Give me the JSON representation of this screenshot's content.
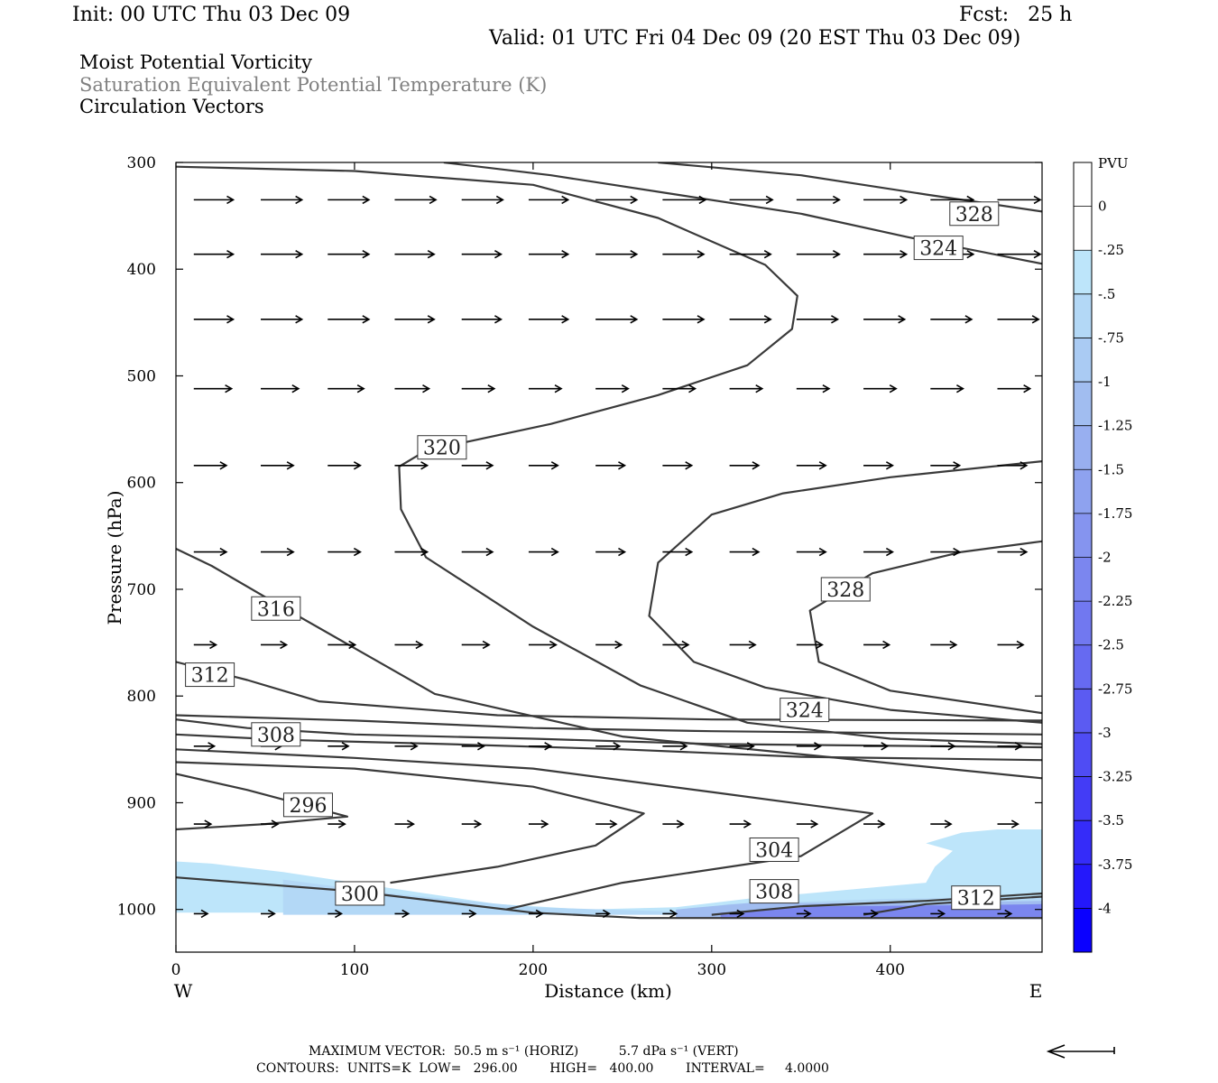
{
  "header": {
    "init": "Init: 00 UTC Thu 03 Dec 09",
    "fcst": "Fcst:   25 h",
    "valid": "Valid: 01 UTC Fri 04 Dec 09 (20 EST Thu 03 Dec 09)"
  },
  "fields": {
    "line1": "Moist Potential Vorticity",
    "line2": "Saturation Equivalent Potential Temperature (K)",
    "line3": "Circulation Vectors"
  },
  "footer": {
    "max_vector": "MAXIMUM VECTOR:  50.5 m s⁻¹ (HORIZ)          5.7 dPa s⁻¹ (VERT)",
    "contours": "CONTOURS:  UNITS=K  LOW=   296.00        HIGH=   400.00        INTERVAL=     4.0000"
  },
  "colors": {
    "contour": "#3a3a3a",
    "arrow": "#000000"
  },
  "chart_data": {
    "type": "cross-section",
    "xlabel": "Distance (km)",
    "ylabel": "Pressure (hPa)",
    "x_range": [
      0,
      485
    ],
    "y_range": [
      1040,
      300
    ],
    "y_scale": "linear-pressure",
    "x_ticks": [
      0,
      100,
      200,
      300,
      400
    ],
    "y_ticks": [
      300,
      400,
      500,
      600,
      700,
      800,
      900,
      1000
    ],
    "x_end_labels": {
      "left": "W",
      "right": "E"
    },
    "colorbar": {
      "units": "PVU",
      "labels": [
        "0",
        "-.25",
        "-.5",
        "-.75",
        "-1",
        "-1.25",
        "-1.5",
        "-1.75",
        "-2",
        "-2.25",
        "-2.5",
        "-2.75",
        "-3",
        "-3.25",
        "-3.5",
        "-3.75",
        "-4"
      ],
      "colors": [
        "#ffffff",
        "#bde5fa",
        "#b3d8f6",
        "#aacbf3",
        "#a1bdf0",
        "#98aff0",
        "#8ea2ef",
        "#8594ef",
        "#7b86ef",
        "#7178f0",
        "#666af1",
        "#5b5bf2",
        "#4f4cf4",
        "#433cf6",
        "#352cf9",
        "#2418fb",
        "#0a00ff"
      ]
    },
    "pv_shading": [
      {
        "level": "-.25",
        "polygon": [
          [
            0,
            955
          ],
          [
            20,
            957
          ],
          [
            60,
            965
          ],
          [
            100,
            975
          ],
          [
            140,
            985
          ],
          [
            180,
            995
          ],
          [
            230,
            1000
          ],
          [
            280,
            998
          ],
          [
            320,
            990
          ],
          [
            420,
            975
          ],
          [
            425,
            960
          ],
          [
            435,
            945
          ],
          [
            420,
            938
          ],
          [
            440,
            928
          ],
          [
            460,
            925
          ],
          [
            485,
            925
          ],
          [
            485,
            1003
          ],
          [
            0,
            1003
          ],
          [
            0,
            965
          ]
        ]
      },
      {
        "level": "-.5",
        "polygon": [
          [
            60,
            972
          ],
          [
            120,
            985
          ],
          [
            200,
            998
          ],
          [
            280,
            1002
          ],
          [
            310,
            995
          ],
          [
            400,
            990
          ],
          [
            485,
            988
          ],
          [
            485,
            1005
          ],
          [
            60,
            1005
          ]
        ]
      },
      {
        "level": "-1",
        "polygon": [
          [
            280,
            1000
          ],
          [
            320,
            994
          ],
          [
            420,
            994
          ],
          [
            485,
            992
          ],
          [
            485,
            1008
          ],
          [
            280,
            1008
          ]
        ]
      },
      {
        "level": "-2",
        "polygon": [
          [
            305,
            1003
          ],
          [
            360,
            997
          ],
          [
            440,
            996
          ],
          [
            485,
            995
          ],
          [
            485,
            1009
          ],
          [
            305,
            1009
          ]
        ]
      }
    ],
    "theta_contours": [
      {
        "value": 300,
        "points": [
          [
            0,
            970
          ],
          [
            100,
            983
          ],
          [
            200,
            1003
          ],
          [
            260,
            1008
          ],
          [
            485,
            1008
          ]
        ]
      },
      {
        "value": 300,
        "points": [
          [
            185,
            1000
          ],
          [
            250,
            975
          ],
          [
            350,
            950
          ],
          [
            390,
            910
          ],
          [
            300,
            890
          ],
          [
            200,
            868
          ],
          [
            100,
            858
          ],
          [
            0,
            850
          ]
        ]
      },
      {
        "value": 296,
        "points": [
          [
            0,
            925
          ],
          [
            50,
            920
          ],
          [
            96,
            913
          ],
          [
            40,
            888
          ],
          [
            0,
            873
          ]
        ]
      },
      {
        "value": 296,
        "points": [
          [
            120,
            975
          ],
          [
            180,
            960
          ],
          [
            235,
            940
          ],
          [
            262,
            910
          ],
          [
            200,
            885
          ],
          [
            100,
            868
          ],
          [
            0,
            862
          ]
        ]
      },
      {
        "value": 304,
        "points": [
          [
            0,
            836
          ],
          [
            60,
            841
          ],
          [
            150,
            845
          ],
          [
            250,
            850
          ],
          [
            350,
            857
          ],
          [
            485,
            860
          ]
        ]
      },
      {
        "value": 304,
        "points": [
          [
            0,
            822
          ],
          [
            40,
            830
          ],
          [
            100,
            836
          ],
          [
            200,
            840
          ],
          [
            300,
            845
          ],
          [
            485,
            848
          ]
        ]
      },
      {
        "value": 308,
        "points": [
          [
            0,
            818
          ],
          [
            40,
            820
          ],
          [
            100,
            823
          ],
          [
            200,
            830
          ],
          [
            300,
            833
          ],
          [
            485,
            836
          ]
        ]
      },
      {
        "value": 312,
        "points": [
          [
            0,
            768
          ],
          [
            40,
            785
          ],
          [
            80,
            805
          ],
          [
            180,
            818
          ],
          [
            300,
            822
          ],
          [
            485,
            823
          ]
        ]
      },
      {
        "value": 316,
        "points": [
          [
            0,
            662
          ],
          [
            20,
            678
          ],
          [
            60,
            717
          ],
          [
            145,
            798
          ],
          [
            250,
            838
          ],
          [
            485,
            877
          ]
        ]
      },
      {
        "value": 320,
        "points": [
          [
            0,
            304
          ],
          [
            100,
            308
          ],
          [
            200,
            321
          ],
          [
            270,
            352
          ],
          [
            330,
            396
          ],
          [
            348,
            425
          ],
          [
            345,
            456
          ],
          [
            320,
            490
          ],
          [
            270,
            518
          ],
          [
            210,
            545
          ],
          [
            140,
            570
          ],
          [
            125,
            585
          ],
          [
            126,
            625
          ],
          [
            140,
            670
          ],
          [
            200,
            735
          ],
          [
            260,
            790
          ],
          [
            320,
            825
          ],
          [
            400,
            840
          ],
          [
            485,
            845
          ]
        ]
      },
      {
        "value": 324,
        "points": [
          [
            150,
            300
          ],
          [
            210,
            312
          ],
          [
            280,
            330
          ],
          [
            350,
            348
          ],
          [
            410,
            370
          ],
          [
            485,
            395
          ]
        ]
      },
      {
        "value": 324,
        "points": [
          [
            485,
            580
          ],
          [
            400,
            595
          ],
          [
            340,
            610
          ],
          [
            300,
            630
          ],
          [
            270,
            675
          ],
          [
            265,
            725
          ],
          [
            290,
            768
          ],
          [
            330,
            792
          ],
          [
            400,
            813
          ],
          [
            485,
            825
          ]
        ]
      },
      {
        "value": 328,
        "points": [
          [
            270,
            300
          ],
          [
            350,
            312
          ],
          [
            420,
            330
          ],
          [
            485,
            346
          ]
        ]
      },
      {
        "value": 328,
        "points": [
          [
            485,
            655
          ],
          [
            440,
            665
          ],
          [
            390,
            685
          ],
          [
            355,
            720
          ],
          [
            360,
            768
          ],
          [
            400,
            795
          ],
          [
            485,
            816
          ]
        ]
      },
      {
        "value": 312,
        "points": [
          [
            300,
            1005
          ],
          [
            350,
            997
          ],
          [
            420,
            992
          ],
          [
            485,
            985
          ]
        ]
      },
      {
        "value": 316,
        "points": [
          [
            385,
            1005
          ],
          [
            420,
            995
          ],
          [
            485,
            988
          ]
        ]
      }
    ],
    "contour_labels": [
      {
        "text": "328",
        "x": 447,
        "y": 348
      },
      {
        "text": "324",
        "x": 427,
        "y": 380
      },
      {
        "text": "320",
        "x": 149,
        "y": 567
      },
      {
        "text": "328",
        "x": 375,
        "y": 700
      },
      {
        "text": "316",
        "x": 56,
        "y": 718
      },
      {
        "text": "312",
        "x": 19,
        "y": 780
      },
      {
        "text": "324",
        "x": 352,
        "y": 813
      },
      {
        "text": "308",
        "x": 56,
        "y": 836
      },
      {
        "text": "296",
        "x": 74,
        "y": 902
      },
      {
        "text": "304",
        "x": 335,
        "y": 944
      },
      {
        "text": "300",
        "x": 103,
        "y": 985
      },
      {
        "text": "308",
        "x": 335,
        "y": 983
      },
      {
        "text": "312",
        "x": 448,
        "y": 989
      }
    ],
    "vector_rows": [
      {
        "p": 335,
        "u": [
          2.3,
          2.4,
          2.4,
          2.4,
          2.4,
          2.3,
          2.4,
          2.5,
          2.5,
          2.5,
          2.5,
          2.5,
          2.5
        ],
        "w": [
          0,
          0,
          0,
          0,
          0,
          0,
          0,
          0,
          0,
          0,
          0,
          0,
          0
        ]
      },
      {
        "p": 386,
        "u": [
          2.3,
          2.4,
          2.4,
          2.3,
          2.3,
          2.3,
          2.4,
          2.4,
          2.4,
          2.5,
          2.5,
          2.5,
          2.5
        ],
        "w": [
          0,
          0,
          0,
          0,
          0,
          0,
          0,
          0,
          0,
          0,
          0,
          0,
          0
        ]
      },
      {
        "p": 447,
        "u": [
          2.3,
          2.4,
          2.4,
          2.3,
          2.3,
          2.3,
          2.4,
          2.4,
          2.4,
          2.4,
          2.4,
          2.4,
          2.4
        ],
        "w": [
          0,
          0,
          0,
          0,
          0,
          0,
          0,
          0,
          0,
          0,
          0,
          0,
          0
        ]
      },
      {
        "p": 512,
        "u": [
          2.2,
          2.2,
          2.1,
          2.0,
          1.9,
          1.9,
          1.9,
          1.9,
          1.9,
          1.9,
          1.9,
          1.9,
          1.9
        ],
        "w": [
          0,
          0,
          0,
          0,
          0,
          0,
          0,
          0,
          0,
          0,
          0,
          0,
          0
        ]
      },
      {
        "p": 584,
        "u": [
          1.9,
          1.9,
          1.9,
          1.9,
          1.8,
          1.7,
          1.7,
          1.7,
          1.7,
          1.7,
          1.7,
          1.7,
          1.7
        ],
        "w": [
          0,
          0,
          0,
          0,
          0,
          0,
          0,
          0,
          0,
          0,
          0,
          0,
          0
        ]
      },
      {
        "p": 665,
        "u": [
          1.9,
          1.9,
          1.9,
          1.9,
          1.8,
          1.7,
          1.7,
          1.7,
          1.7,
          1.7,
          1.7,
          1.7,
          1.7
        ],
        "w": [
          0,
          0,
          0,
          0,
          0,
          0,
          0,
          0,
          0,
          0,
          0,
          0,
          0
        ]
      },
      {
        "p": 752,
        "u": [
          1.3,
          1.5,
          1.6,
          1.6,
          1.6,
          1.6,
          1.5,
          1.5,
          1.5,
          1.5,
          1.5,
          1.5,
          1.5
        ],
        "w": [
          0,
          0,
          0,
          0,
          0,
          0,
          0,
          0,
          0,
          0,
          0,
          0,
          0
        ]
      },
      {
        "p": 847,
        "u": [
          1.2,
          1.2,
          1.2,
          1.3,
          1.3,
          1.3,
          1.4,
          1.4,
          1.4,
          1.4,
          1.4,
          1.4,
          1.4
        ],
        "w": [
          0,
          0,
          0,
          0,
          0,
          0,
          0,
          0,
          0,
          0,
          0,
          0,
          0
        ]
      },
      {
        "p": 920,
        "u": [
          1.0,
          1.0,
          1.0,
          1.1,
          1.1,
          1.1,
          1.2,
          1.2,
          1.2,
          1.2,
          1.2,
          1.2,
          1.2
        ],
        "w": [
          0,
          0,
          0,
          0,
          0,
          0,
          0,
          0,
          0,
          0,
          0,
          0,
          0
        ]
      },
      {
        "p": 1004,
        "u": [
          0.8,
          0.8,
          0.8,
          0.8,
          0.8,
          0.8,
          0.8,
          0.8,
          0.8,
          0.8,
          0.8,
          0.8,
          0.8
        ],
        "w": [
          0,
          0,
          0,
          0,
          0,
          0,
          0,
          0,
          0,
          0,
          0,
          0,
          0
        ]
      }
    ]
  }
}
